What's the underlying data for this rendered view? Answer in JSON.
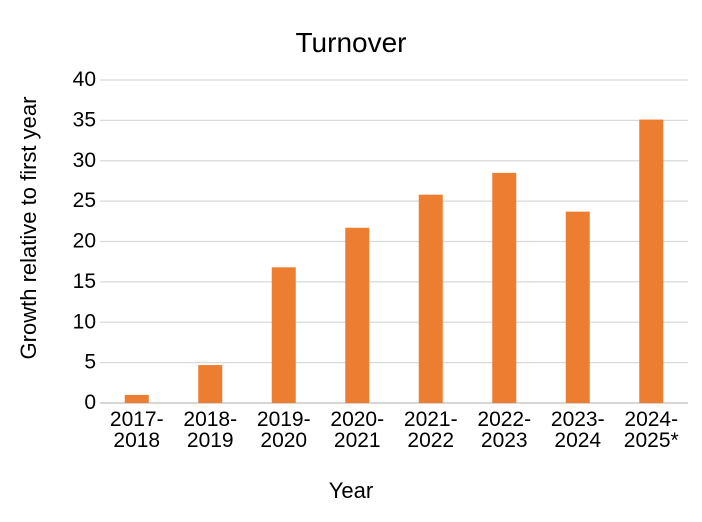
{
  "chart_data": {
    "type": "bar",
    "title": "Turnover",
    "xlabel": "Year",
    "ylabel": "Growth relative to first year",
    "categories": [
      "2017-2018",
      "2018-2019",
      "2019-2020",
      "2020-2021",
      "2021-2022",
      "2022-2023",
      "2023-2024",
      "2024-2025*"
    ],
    "category_label_lines": [
      [
        "2017-",
        "2018"
      ],
      [
        "2018-",
        "2019"
      ],
      [
        "2019-",
        "2020"
      ],
      [
        "2020-",
        "2021"
      ],
      [
        "2021-",
        "2022"
      ],
      [
        "2022-",
        "2023"
      ],
      [
        "2023-",
        "2024"
      ],
      [
        "2024-",
        "2025*"
      ]
    ],
    "values": [
      1.0,
      4.7,
      16.8,
      21.7,
      25.8,
      28.5,
      23.7,
      35.1
    ],
    "yticks": [
      0,
      5,
      10,
      15,
      20,
      25,
      30,
      35,
      40
    ],
    "ylim": [
      0,
      40
    ],
    "grid": true,
    "legend_position": "none",
    "bar_color": "#ED7D31",
    "gridline_color": "#D9D9D9",
    "axis_line_color": "#C9C9C9",
    "text_color": "#000000",
    "background_color": "#FFFFFF"
  }
}
